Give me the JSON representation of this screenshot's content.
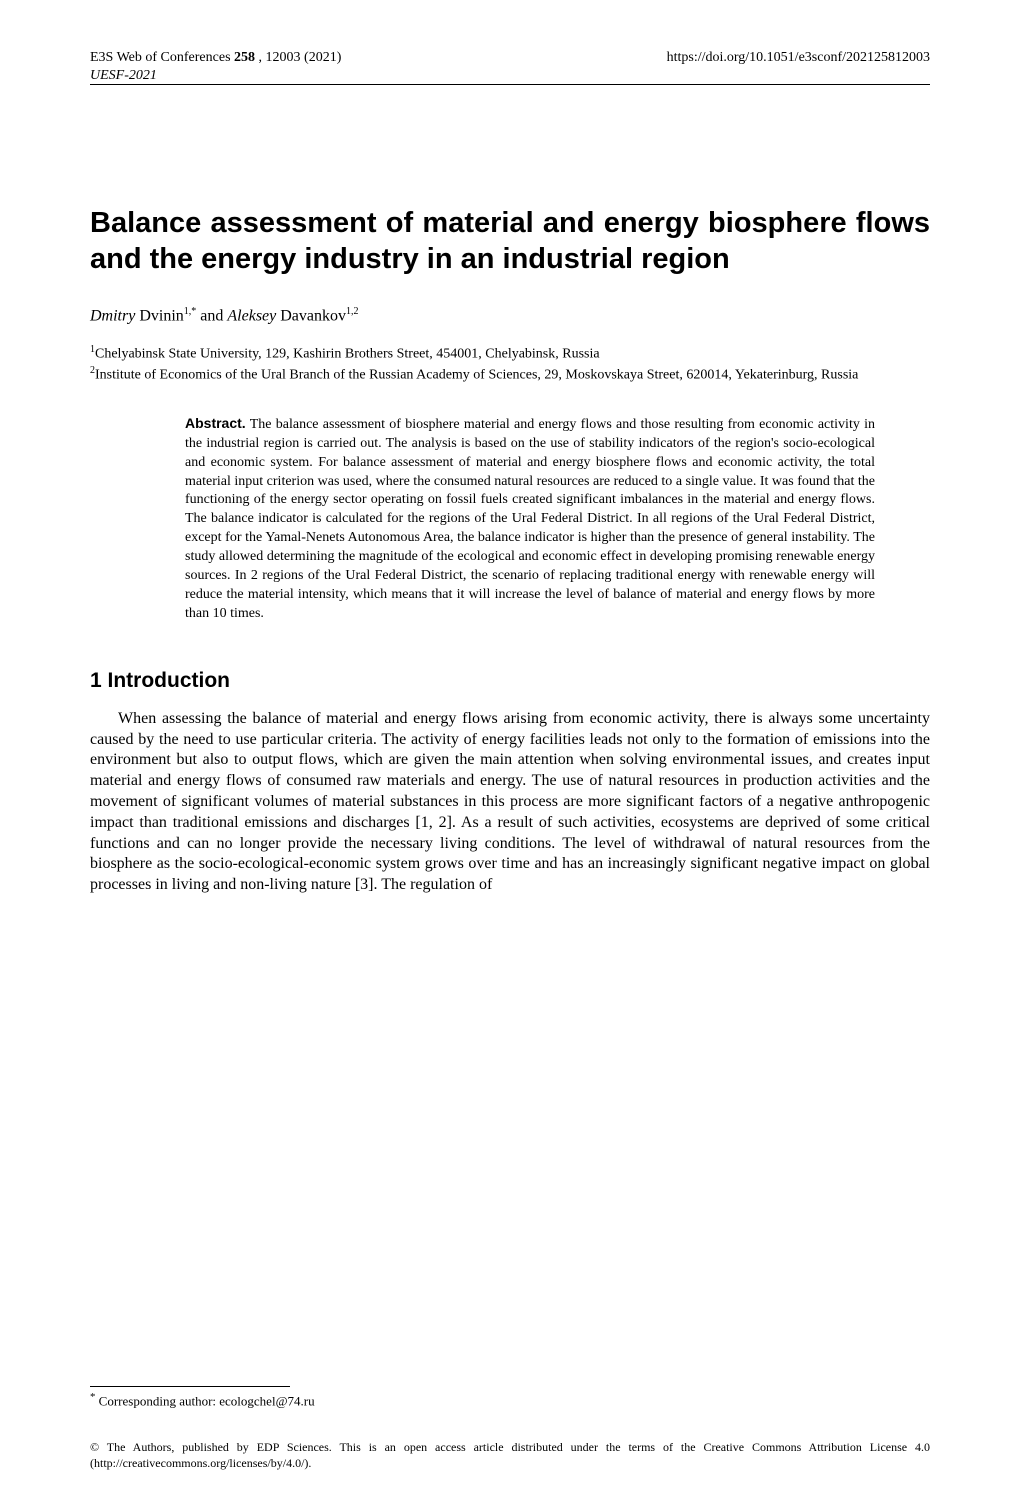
{
  "header": {
    "journal": "E3S Web of Conferences",
    "volume": "258",
    "article_num": "12003 (2021)",
    "conference": "UESF-2021",
    "doi": "https://doi.org/10.1051/e3sconf/202125812003"
  },
  "title": "Balance assessment of material and energy biosphere flows and the energy industry in an industrial region",
  "authors": {
    "a1_given": "Dmitry",
    "a1_surname": "Dvinin",
    "a1_sup": "1,*",
    "and": " and ",
    "a2_given": "Aleksey",
    "a2_surname": "Davankov",
    "a2_sup": "1,2"
  },
  "affiliations": {
    "af1_num": "1",
    "af1_text": "Chelyabinsk State University, 129, Kashirin Brothers Street, 454001, Chelyabinsk, Russia",
    "af2_num": "2",
    "af2_text": "Institute of Economics of the Ural Branch of the Russian Academy of Sciences, 29, Moskovskaya Street, 620014, Yekaterinburg, Russia"
  },
  "abstract": {
    "label": "Abstract.",
    "text": " The balance assessment of biosphere material and energy flows and those resulting from economic activity in the industrial region is carried out. The analysis is based on the use of stability indicators of the region's socio-ecological and economic system. For balance assessment of material and energy biosphere flows and economic activity, the total material input criterion was used, where the consumed natural resources are reduced to a single value. It was found that the functioning of the energy sector operating on fossil fuels created significant imbalances in the material and energy flows. The balance indicator is calculated for the regions of the Ural Federal District. In all regions of the Ural Federal District, except for the Yamal-Nenets Autonomous Area, the balance indicator is higher than the presence of general instability. The study allowed determining the magnitude of the ecological and economic effect in developing promising renewable energy sources. In 2 regions of the Ural Federal District, the scenario of replacing traditional energy with renewable energy will reduce the material intensity, which means that it will increase the level of balance of material and energy flows by more than 10 times."
  },
  "section1": {
    "heading": "1 Introduction",
    "para1": "When assessing the balance of material and energy flows arising from economic activity, there is always some uncertainty caused by the need to use particular criteria. The activity of energy facilities leads not only to the formation of emissions into the environment but also to output flows, which are given the main attention when solving environmental issues, and creates input material and energy flows of consumed raw materials and energy. The use of natural resources in production activities and the movement of significant volumes of material substances in this process are more significant factors of a negative anthropogenic impact than traditional emissions and discharges [1, 2]. As a result of such activities, ecosystems are deprived of some critical functions and can no longer provide the necessary living conditions. The level of withdrawal of natural resources from the biosphere as the socio-ecological-economic system grows over time and has an increasingly significant negative impact on global processes in living and non-living nature [3]. The regulation of"
  },
  "footnote": {
    "marker": "*",
    "text": " Corresponding author: ecologchel@74.ru"
  },
  "license": "© The Authors, published by EDP Sciences. This is an open access article distributed under the terms of the Creative Commons Attribution License 4.0 (http://creativecommons.org/licenses/by/4.0/)."
}
